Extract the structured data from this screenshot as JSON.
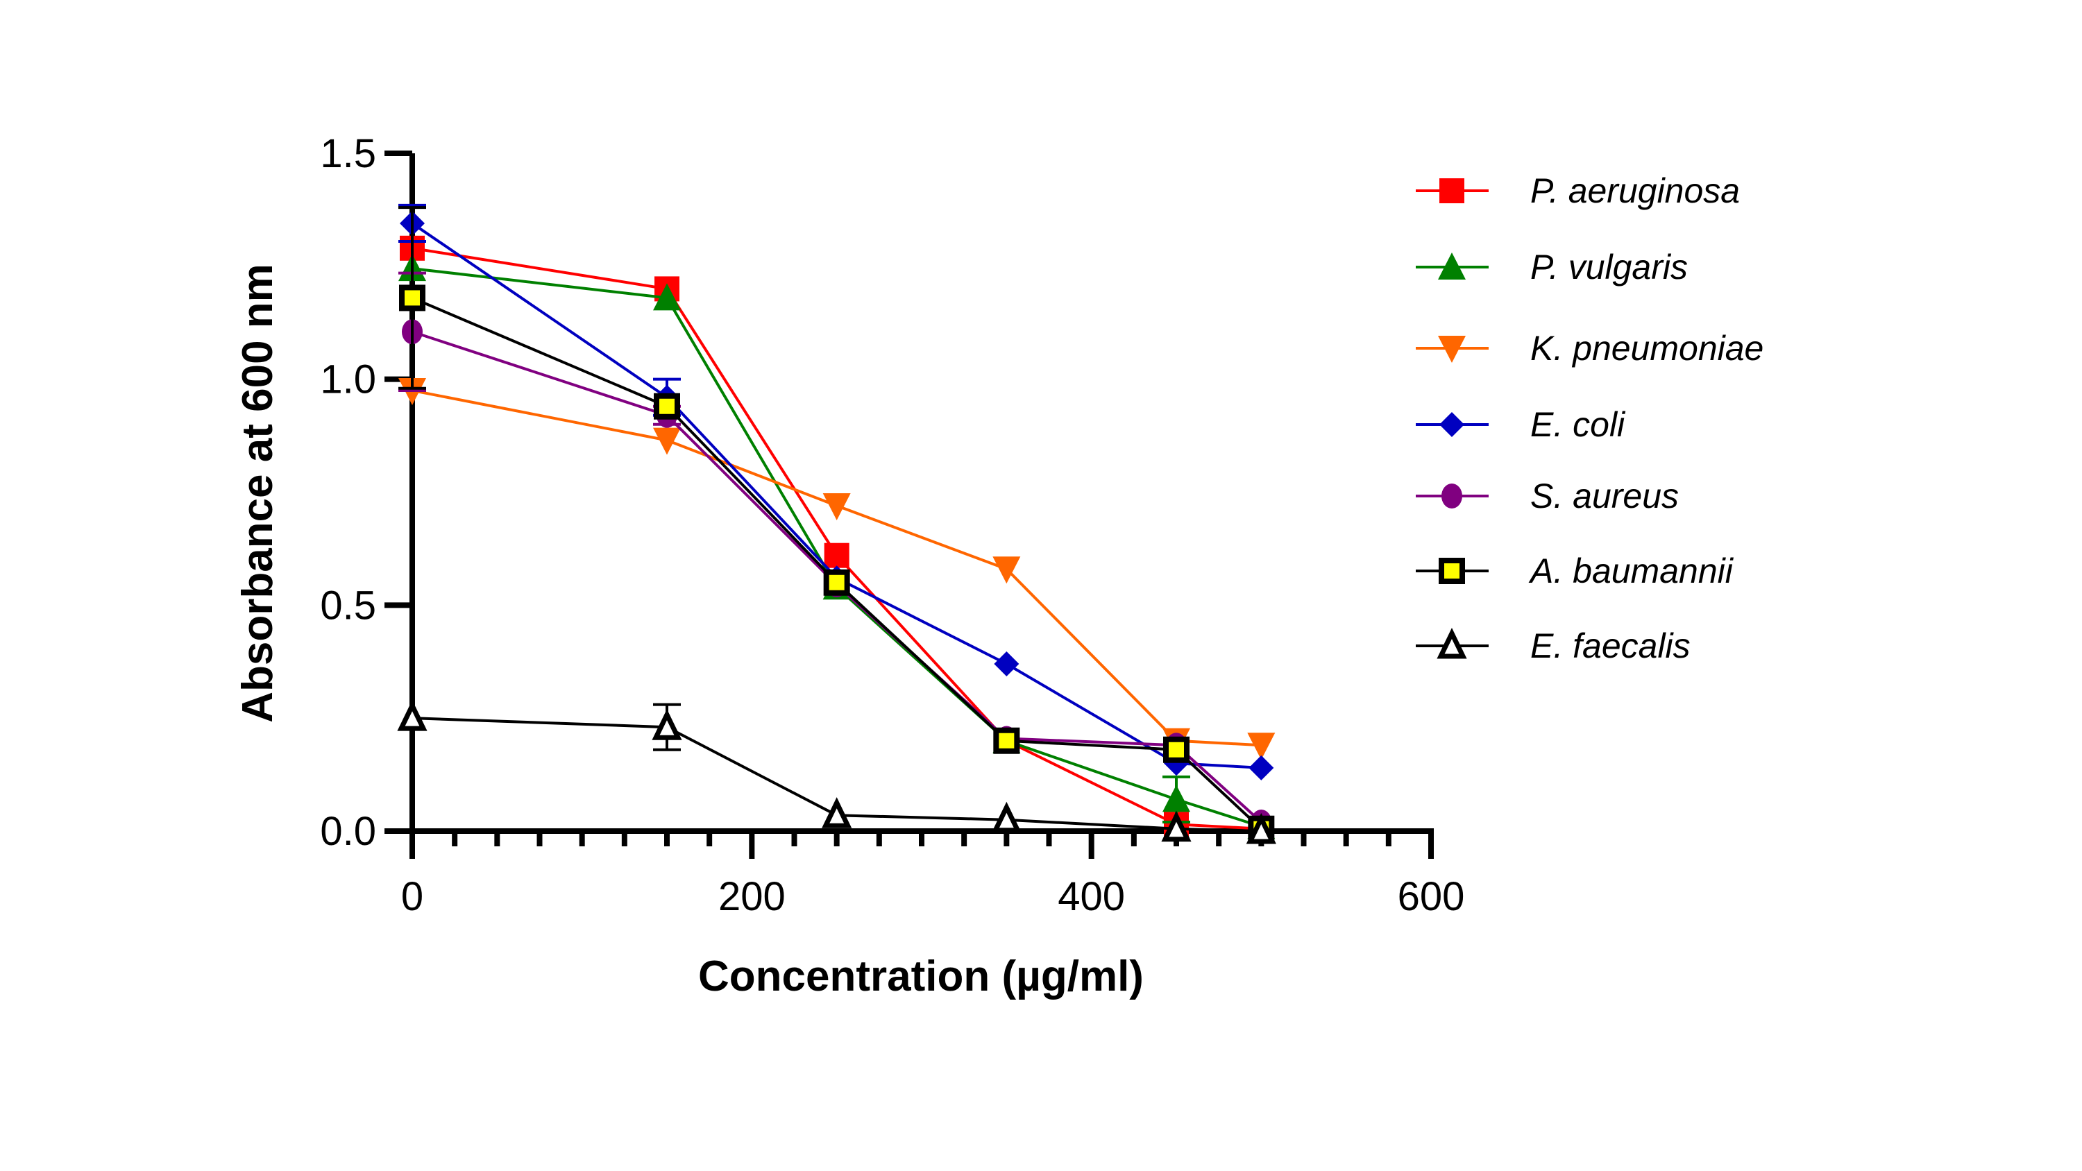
{
  "chart_data": {
    "type": "line",
    "title": "",
    "xlabel": "Concentration (µg/ml)",
    "ylabel": "Absorbance at 600 nm",
    "xlim": [
      0,
      600
    ],
    "ylim": [
      0,
      1.5
    ],
    "xticks": [
      "0",
      "200",
      "400",
      "600"
    ],
    "yticks": [
      "0.0",
      "0.5",
      "1.0",
      "1.5"
    ],
    "grid": false,
    "legend_position": "right",
    "x": [
      0,
      150,
      250,
      350,
      450,
      500
    ],
    "series": [
      {
        "name": "P. aeruginosa",
        "color": "#ff0000",
        "marker": "square",
        "values": [
          1.29,
          1.2,
          0.61,
          0.2,
          0.015,
          0.005
        ],
        "errors": [
          0,
          0,
          0,
          0,
          0,
          0
        ]
      },
      {
        "name": "P. vulgaris",
        "color": "#008000",
        "marker": "triangle-up",
        "values": [
          1.245,
          1.18,
          0.54,
          0.2,
          0.07,
          0.01
        ],
        "errors": [
          0,
          0,
          0,
          0,
          0.05,
          0
        ]
      },
      {
        "name": "K. pneumoniae",
        "color": "#ff6600",
        "marker": "triangle-down",
        "values": [
          0.975,
          0.865,
          0.72,
          0.58,
          0.2,
          0.19
        ],
        "errors": [
          0,
          0,
          0,
          0,
          0,
          0
        ]
      },
      {
        "name": "E. coli",
        "color": "#0000c0",
        "marker": "diamond",
        "values": [
          1.345,
          0.96,
          0.56,
          0.37,
          0.15,
          0.14
        ],
        "errors": [
          0.04,
          0.04,
          0,
          0,
          0,
          0
        ]
      },
      {
        "name": "S. aureus",
        "color": "#800080",
        "marker": "circle",
        "values": [
          1.105,
          0.92,
          0.545,
          0.205,
          0.19,
          0.02
        ],
        "errors": [
          0.13,
          0.02,
          0,
          0,
          0,
          0
        ]
      },
      {
        "name": "A. baumannii",
        "color": "#000000",
        "fill": "#ffff00",
        "marker": "square-open",
        "values": [
          1.18,
          0.94,
          0.55,
          0.2,
          0.18,
          0.005
        ],
        "errors": [
          0.2,
          0,
          0,
          0,
          0,
          0
        ]
      },
      {
        "name": "E. faecalis",
        "color": "#000000",
        "fill": "#ffffff",
        "marker": "triangle-open",
        "values": [
          0.25,
          0.23,
          0.035,
          0.025,
          0.005,
          0.0
        ],
        "errors": [
          0,
          0.05,
          0,
          0,
          0,
          0
        ]
      }
    ]
  }
}
